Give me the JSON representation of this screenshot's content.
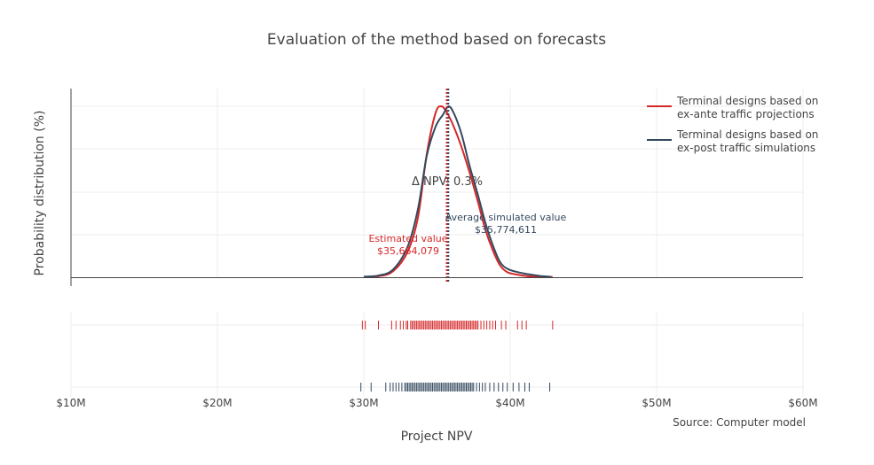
{
  "chart_data": {
    "type": "line",
    "title": "Evaluation of the method based on forecasts",
    "xlabel": "Project NPV",
    "ylabel": "Probability distribution (%)",
    "xlim": [
      10000000,
      60000000
    ],
    "x_ticks": [
      {
        "value": 10000000,
        "label": "$10M"
      },
      {
        "value": 20000000,
        "label": "$20M"
      },
      {
        "value": 30000000,
        "label": "$30M"
      },
      {
        "value": 40000000,
        "label": "$40M"
      },
      {
        "value": 50000000,
        "label": "$50M"
      },
      {
        "value": 60000000,
        "label": "$60M"
      }
    ],
    "grid": true,
    "legend_position": "top-right",
    "series": [
      {
        "name": "Terminal designs based on ex-ante traffic projections",
        "legend_lines": [
          "Terminal designs based on",
          "ex-ante traffic projections"
        ],
        "color": "#d62728",
        "x": [
          30000000,
          31000000,
          32000000,
          33000000,
          33700000,
          34300000,
          34900000,
          35300000,
          35700000,
          36100000,
          36600000,
          37200000,
          37800000,
          38300000,
          38800000,
          39300000,
          39800000,
          40500000,
          41200000,
          42000000,
          42900000
        ],
        "y": [
          0.2,
          0.6,
          3.5,
          15,
          35,
          72,
          96,
          100,
          96,
          89,
          78,
          62,
          44,
          28,
          16,
          7,
          3,
          1.5,
          0.6,
          0.3,
          0.1
        ],
        "mean_value": 35664079,
        "mean_label_lines": [
          "Estimated value",
          "$35,664,079"
        ],
        "rug_x": [
          29900000,
          30100000,
          31000000,
          31900000,
          32200000,
          32500000,
          32700000,
          32900000,
          33000000,
          33200000,
          33300000,
          33400000,
          33500000,
          33600000,
          33700000,
          33800000,
          33900000,
          34000000,
          34100000,
          34200000,
          34300000,
          34400000,
          34500000,
          34600000,
          34700000,
          34800000,
          34900000,
          35000000,
          35100000,
          35200000,
          35300000,
          35400000,
          35500000,
          35600000,
          35700000,
          35800000,
          35900000,
          36000000,
          36100000,
          36200000,
          36300000,
          36400000,
          36500000,
          36600000,
          36700000,
          36800000,
          36900000,
          37000000,
          37100000,
          37200000,
          37300000,
          37400000,
          37500000,
          37600000,
          37700000,
          37800000,
          38000000,
          38200000,
          38400000,
          38600000,
          38800000,
          39000000,
          39400000,
          39700000,
          40500000,
          40800000,
          41100000,
          42900000
        ]
      },
      {
        "name": "Terminal designs based on ex-post traffic simulations",
        "legend_lines": [
          "Terminal designs based on",
          "ex-post traffic simulations"
        ],
        "color": "#34495e",
        "x": [
          30000000,
          31000000,
          32000000,
          33000000,
          33700000,
          34300000,
          34900000,
          35400000,
          35800000,
          36200000,
          36700000,
          37200000,
          37800000,
          38300000,
          38800000,
          39300000,
          39800000,
          40500000,
          41200000,
          42000000,
          42800000
        ],
        "y": [
          0.3,
          1,
          4.5,
          18,
          40,
          71,
          88,
          95,
          100,
          95,
          83,
          66,
          48,
          32,
          19,
          9,
          5,
          3,
          1.8,
          0.8,
          0.2
        ],
        "mean_value": 35774611,
        "mean_label_lines": [
          "Average simulated value",
          "$35,774,611"
        ],
        "rug_x": [
          29800000,
          30500000,
          31500000,
          31800000,
          32000000,
          32200000,
          32400000,
          32600000,
          32800000,
          32900000,
          33000000,
          33100000,
          33200000,
          33300000,
          33400000,
          33500000,
          33600000,
          33700000,
          33800000,
          33900000,
          34000000,
          34100000,
          34200000,
          34300000,
          34400000,
          34500000,
          34600000,
          34700000,
          34800000,
          34900000,
          35000000,
          35100000,
          35200000,
          35300000,
          35400000,
          35500000,
          35600000,
          35700000,
          35800000,
          35900000,
          36000000,
          36100000,
          36200000,
          36300000,
          36400000,
          36500000,
          36600000,
          36700000,
          36800000,
          36900000,
          37000000,
          37100000,
          37200000,
          37300000,
          37400000,
          37500000,
          37700000,
          37900000,
          38100000,
          38300000,
          38600000,
          38900000,
          39200000,
          39500000,
          39800000,
          40200000,
          40600000,
          41000000,
          41300000,
          42700000
        ]
      }
    ],
    "annotation": "Δ NPV: 0.3%",
    "source": "Source: Computer model"
  }
}
